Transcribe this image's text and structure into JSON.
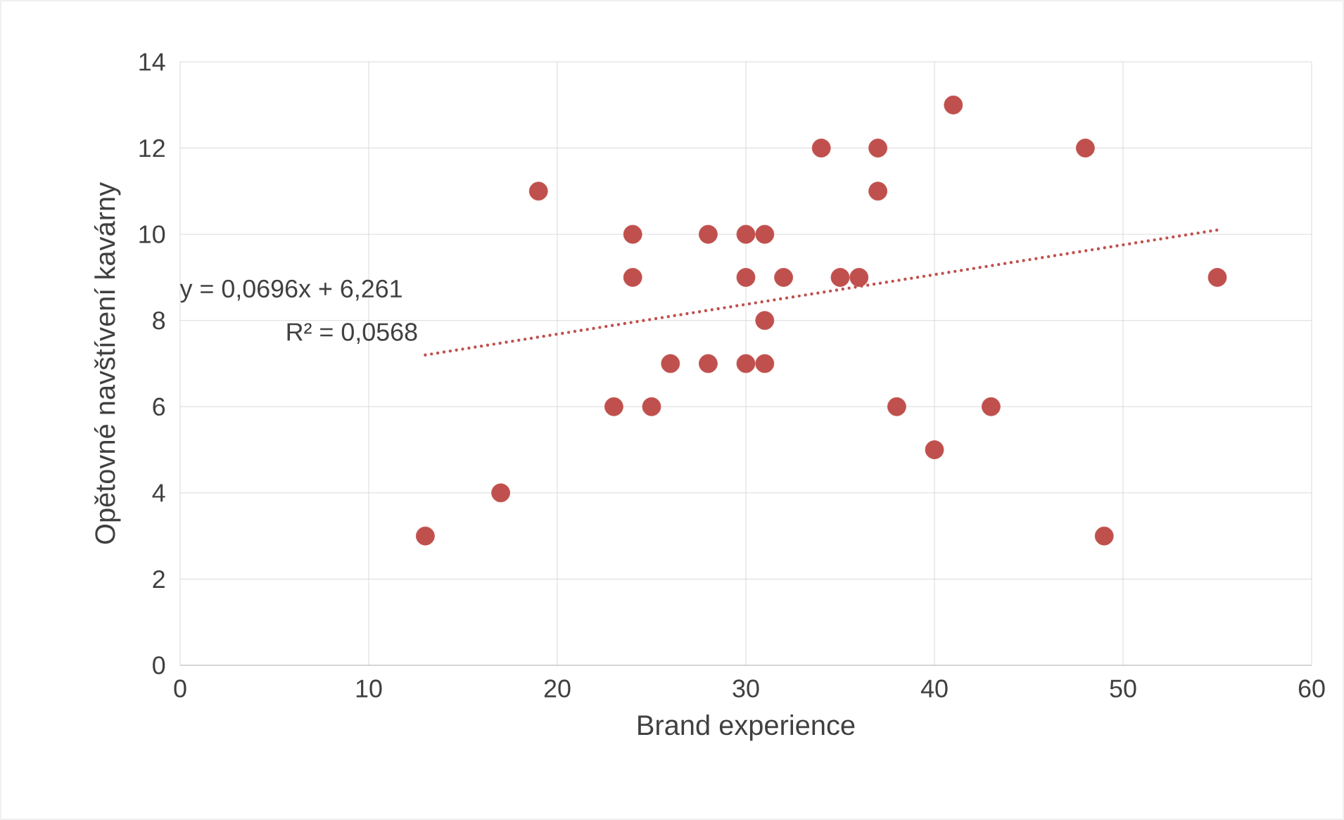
{
  "chart_data": {
    "type": "scatter",
    "xlabel": "Brand experience",
    "ylabel": "Opětovné navštívení kavárny",
    "xlim": [
      0,
      60
    ],
    "ylim": [
      0,
      14
    ],
    "xticks": [
      0,
      10,
      20,
      30,
      40,
      50,
      60
    ],
    "yticks": [
      0,
      2,
      4,
      6,
      8,
      10,
      12,
      14
    ],
    "grid": true,
    "series": [
      {
        "color": "#c0504d",
        "marker": "circle",
        "x": [
          13,
          17,
          19,
          23,
          24,
          24,
          25,
          26,
          28,
          28,
          30,
          30,
          30,
          31,
          31,
          31,
          32,
          34,
          35,
          36,
          37,
          37,
          38,
          40,
          41,
          43,
          48,
          49,
          55
        ],
        "values": [
          3,
          4,
          11,
          6,
          10,
          9,
          6,
          7,
          10,
          7,
          10,
          9,
          7,
          10,
          8,
          7,
          9,
          12,
          9,
          9,
          12,
          11,
          6,
          5,
          13,
          6,
          12,
          3,
          9
        ]
      },
      {
        "type": "line",
        "color": "#c0504d",
        "marker": "none",
        "line_style": "dotted",
        "x": [
          13,
          55
        ],
        "values": [
          7.2,
          10.1
        ]
      }
    ],
    "annotations": [
      "y = 0,0696x + 6,261",
      "R² = 0,0568"
    ]
  }
}
